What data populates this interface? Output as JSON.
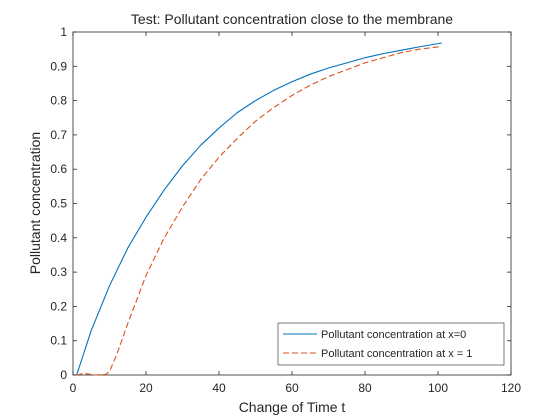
{
  "chart_data": {
    "type": "line",
    "title": "Test: Pollutant concentration close to the membrane",
    "xlabel": "Change of Time t",
    "ylabel": "Pollutant concentration",
    "xlim": [
      0,
      120
    ],
    "ylim": [
      0,
      1
    ],
    "xticks": [
      "0",
      "20",
      "40",
      "60",
      "80",
      "100",
      "120"
    ],
    "yticks": [
      "0",
      "0.1",
      "0.2",
      "0.3",
      "0.4",
      "0.5",
      "0.6",
      "0.7",
      "0.8",
      "0.9",
      "1"
    ],
    "grid": false,
    "legend_position": "bottom-right",
    "series": [
      {
        "name": "Pollutant concentration at x=0",
        "color": "#0072BD",
        "style": "solid",
        "x": [
          1,
          5,
          10,
          15,
          20,
          25,
          30,
          35,
          40,
          45,
          50,
          55,
          60,
          65,
          70,
          75,
          80,
          85,
          90,
          95,
          101
        ],
        "y": [
          0.0,
          0.13,
          0.26,
          0.37,
          0.46,
          0.54,
          0.61,
          0.67,
          0.72,
          0.765,
          0.8,
          0.83,
          0.855,
          0.877,
          0.895,
          0.91,
          0.925,
          0.937,
          0.947,
          0.957,
          0.968
        ]
      },
      {
        "name": "Pollutant concentration at x = 1",
        "color": "#D95319",
        "style": "dashed",
        "x": [
          1,
          3,
          6,
          9,
          10,
          12,
          15,
          20,
          25,
          30,
          35,
          40,
          45,
          50,
          55,
          60,
          65,
          70,
          75,
          80,
          85,
          90,
          95,
          101
        ],
        "y": [
          0.0,
          0.005,
          0.0,
          0.002,
          0.01,
          0.06,
          0.15,
          0.29,
          0.4,
          0.49,
          0.57,
          0.635,
          0.69,
          0.74,
          0.78,
          0.815,
          0.845,
          0.87,
          0.89,
          0.91,
          0.925,
          0.94,
          0.95,
          0.958
        ]
      }
    ]
  }
}
